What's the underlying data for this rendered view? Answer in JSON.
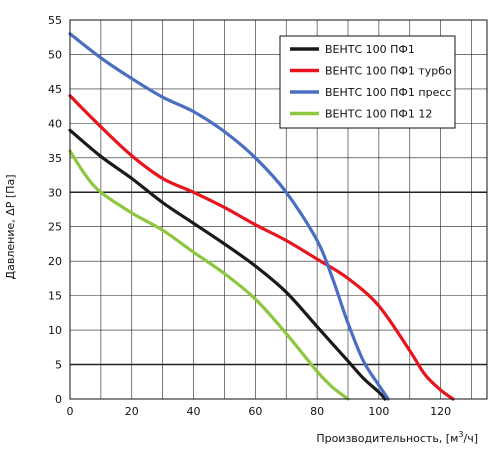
{
  "chart_data": {
    "type": "line",
    "title": "",
    "xlabel": "Производительность, [м³/ч]",
    "xlabel_main": "Производительность, [м",
    "xlabel_sup": "3",
    "xlabel_tail": "/ч]",
    "ylabel": "Давление, ΔР [Па]",
    "xlim": [
      0,
      135
    ],
    "ylim": [
      0,
      55
    ],
    "xticks": [
      0,
      20,
      40,
      60,
      80,
      100,
      120
    ],
    "yticks": [
      0,
      5,
      10,
      15,
      20,
      25,
      30,
      35,
      40,
      45,
      50,
      55
    ],
    "grid": true,
    "grid_bold_y": [
      5,
      30
    ],
    "legend_position": "top-right",
    "series": [
      {
        "name": "ВЕНТС 100 ПФ1",
        "color": "#1a1a1a",
        "x": [
          0,
          10,
          20,
          30,
          40,
          50,
          60,
          70,
          80,
          90,
          95,
          100,
          102
        ],
        "y": [
          39,
          35.2,
          32,
          28.5,
          25.5,
          22.5,
          19.3,
          15.5,
          10.5,
          5.5,
          3,
          1,
          0
        ]
      },
      {
        "name": "ВЕНТС 100 ПФ1 турбо",
        "color": "#e8141c",
        "x": [
          0,
          10,
          20,
          30,
          40,
          50,
          60,
          70,
          80,
          90,
          100,
          110,
          115,
          120,
          124
        ],
        "y": [
          44,
          39.5,
          35.3,
          32,
          30,
          27.8,
          25.3,
          23,
          20.3,
          17.5,
          13.5,
          7,
          3.5,
          1.3,
          0
        ]
      },
      {
        "name": "ВЕНТС 100 ПФ1 пресс",
        "color": "#4a6ec2",
        "x": [
          0,
          10,
          20,
          30,
          40,
          50,
          60,
          70,
          80,
          85,
          90,
          95,
          100,
          103
        ],
        "y": [
          53,
          49.5,
          46.5,
          43.8,
          41.7,
          38.8,
          35,
          30,
          23,
          17.5,
          11,
          5.5,
          2,
          0
        ]
      },
      {
        "name": "ВЕНТС 100 ПФ1 12",
        "color": "#8dc63f",
        "x": [
          0,
          5,
          10,
          20,
          30,
          40,
          50,
          60,
          70,
          80,
          85,
          90
        ],
        "y": [
          36,
          32.5,
          30,
          27,
          24.5,
          21.3,
          18.2,
          14.5,
          9.5,
          4,
          1.7,
          0
        ]
      }
    ]
  }
}
